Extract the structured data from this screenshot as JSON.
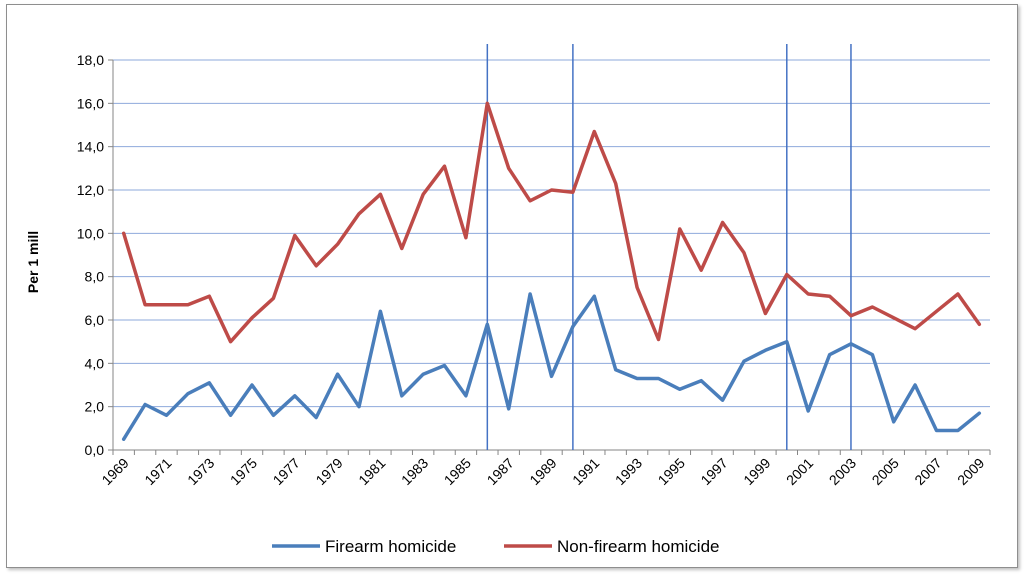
{
  "chart_data": {
    "type": "line",
    "title": "",
    "xlabel": "",
    "ylabel": "Per 1 mill",
    "ylim": [
      0,
      18
    ],
    "y_ticks": [
      "0,0",
      "2,0",
      "4,0",
      "6,0",
      "8,0",
      "10,0",
      "12,0",
      "14,0",
      "16,0",
      "18,0"
    ],
    "x": [
      1969,
      1970,
      1971,
      1972,
      1973,
      1974,
      1975,
      1976,
      1977,
      1978,
      1979,
      1980,
      1981,
      1982,
      1983,
      1984,
      1985,
      1986,
      1987,
      1988,
      1989,
      1990,
      1991,
      1992,
      1993,
      1994,
      1995,
      1996,
      1997,
      1998,
      1999,
      2000,
      2001,
      2002,
      2003,
      2004,
      2005,
      2006,
      2007,
      2008,
      2009
    ],
    "x_tick_labels": [
      "1969",
      "1971",
      "1973",
      "1975",
      "1977",
      "1979",
      "1981",
      "1983",
      "1985",
      "1987",
      "1989",
      "1991",
      "1993",
      "1995",
      "1997",
      "1999",
      "2001",
      "2003",
      "2005",
      "2007",
      "2009"
    ],
    "grid": true,
    "legend_position": "bottom",
    "vertical_markers": [
      1986,
      1990,
      2000,
      2003
    ],
    "marker_color": "#4472c4",
    "grid_color": "#8ea9db",
    "series": [
      {
        "name": "Firearm homicide",
        "color": "#4a7ebb",
        "values": [
          0.5,
          2.1,
          1.6,
          2.6,
          3.1,
          1.6,
          3.0,
          1.6,
          2.5,
          1.5,
          3.5,
          2.0,
          6.4,
          2.5,
          3.5,
          3.9,
          2.5,
          5.8,
          1.9,
          7.2,
          3.4,
          5.7,
          7.1,
          3.7,
          3.3,
          3.3,
          2.8,
          3.2,
          2.3,
          4.1,
          4.6,
          5.0,
          1.8,
          4.4,
          4.9,
          4.4,
          1.3,
          3.0,
          0.9,
          0.9,
          1.7
        ]
      },
      {
        "name": "Non-firearm homicide",
        "color": "#be4b48",
        "values": [
          10.0,
          6.7,
          6.7,
          6.7,
          7.1,
          5.0,
          6.1,
          7.0,
          9.9,
          8.5,
          9.5,
          10.9,
          11.8,
          9.3,
          11.8,
          13.1,
          9.8,
          16.0,
          13.0,
          11.5,
          12.0,
          11.9,
          14.7,
          12.3,
          7.5,
          5.1,
          10.2,
          8.3,
          10.5,
          9.1,
          6.3,
          8.1,
          7.2,
          7.1,
          6.2,
          6.6,
          6.1,
          5.6,
          6.4,
          7.2,
          5.8
        ]
      }
    ]
  }
}
